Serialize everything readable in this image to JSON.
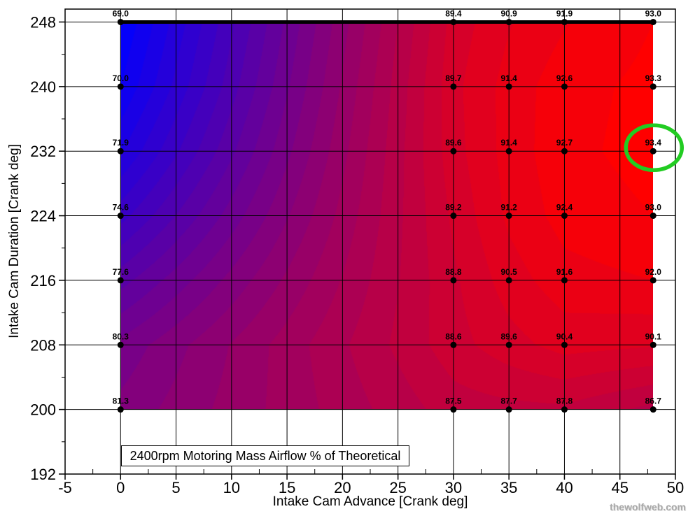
{
  "chart_data": {
    "type": "heatmap",
    "subtype": "filled-contour",
    "title": "2400rpm Motoring Mass Airflow % of Theoretical",
    "xlabel": "Intake Cam Advance [Crank deg]",
    "ylabel": "Intake Cam Duration [Crank deg]",
    "xlim": [
      -5,
      50
    ],
    "ylim": [
      192,
      249.6
    ],
    "x_major_ticks": [
      -5,
      0,
      5,
      10,
      15,
      20,
      25,
      30,
      35,
      40,
      45,
      50
    ],
    "y_major_ticks": [
      192,
      200,
      208,
      216,
      224,
      232,
      240,
      248
    ],
    "grid": true,
    "legend": "none",
    "x": [
      0,
      30,
      35,
      40,
      48
    ],
    "y": [
      200,
      208,
      216,
      224,
      232,
      240,
      248
    ],
    "values": [
      [
        81.3,
        87.5,
        87.7,
        87.8,
        86.7
      ],
      [
        80.3,
        88.6,
        89.6,
        90.4,
        90.1
      ],
      [
        77.6,
        88.8,
        90.5,
        91.6,
        92.0
      ],
      [
        74.6,
        89.2,
        91.2,
        92.4,
        93.0
      ],
      [
        71.9,
        89.6,
        91.4,
        92.7,
        93.4
      ],
      [
        70.0,
        89.7,
        91.4,
        92.6,
        93.3
      ],
      [
        69.0,
        89.4,
        90.9,
        91.9,
        93.0
      ]
    ],
    "vmin": 69.0,
    "vmax": 93.4,
    "band_step": 1.0,
    "colormap_low": "#0000ff",
    "colormap_high": "#ff0000",
    "gridline_color": "#000000",
    "marker_color": "#000000",
    "label_color": "#000000",
    "top_edge_thick_line": true,
    "annotation": {
      "type": "ellipse",
      "x": 48,
      "y": 232,
      "value": 93.4,
      "color": "#22cc22"
    }
  },
  "watermark": {
    "text": "thewolfweb.com"
  }
}
